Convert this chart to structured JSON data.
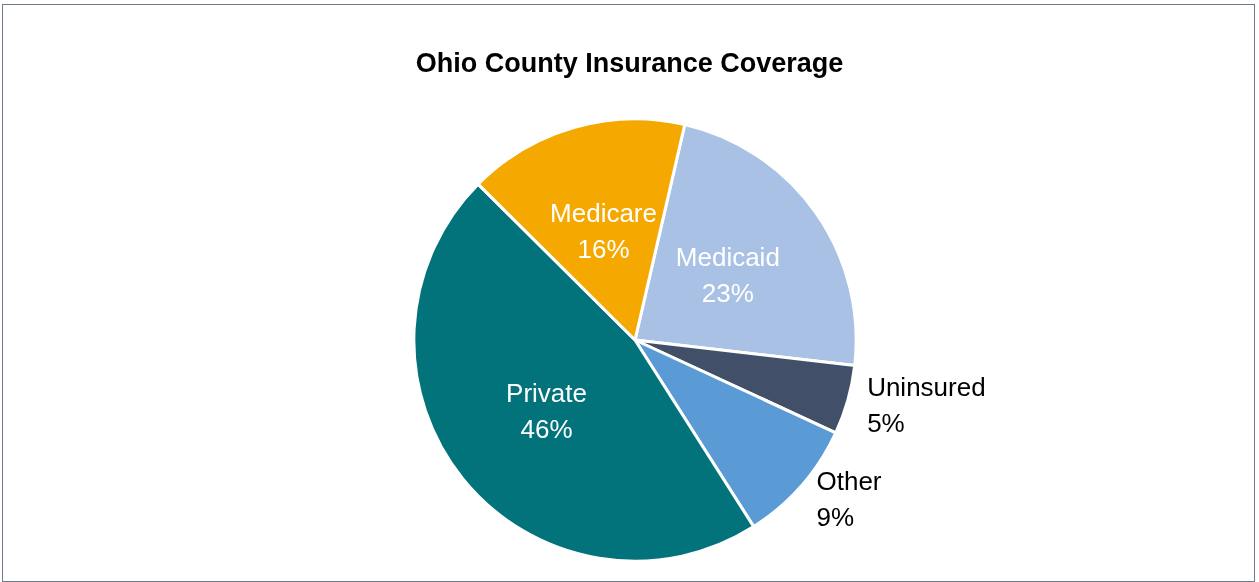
{
  "chart_data": {
    "type": "pie",
    "title": "Ohio County Insurance Coverage",
    "categories": [
      "Medicaid",
      "Uninsured",
      "Other",
      "Private",
      "Medicare"
    ],
    "values": [
      23,
      5,
      9,
      46,
      16
    ],
    "value_labels": [
      "23%",
      "5%",
      "9%",
      "46%",
      "16%"
    ],
    "colors": [
      "#a9c1e5",
      "#415068",
      "#5b9bd5",
      "#02737b",
      "#f5a800"
    ],
    "legend": false
  }
}
